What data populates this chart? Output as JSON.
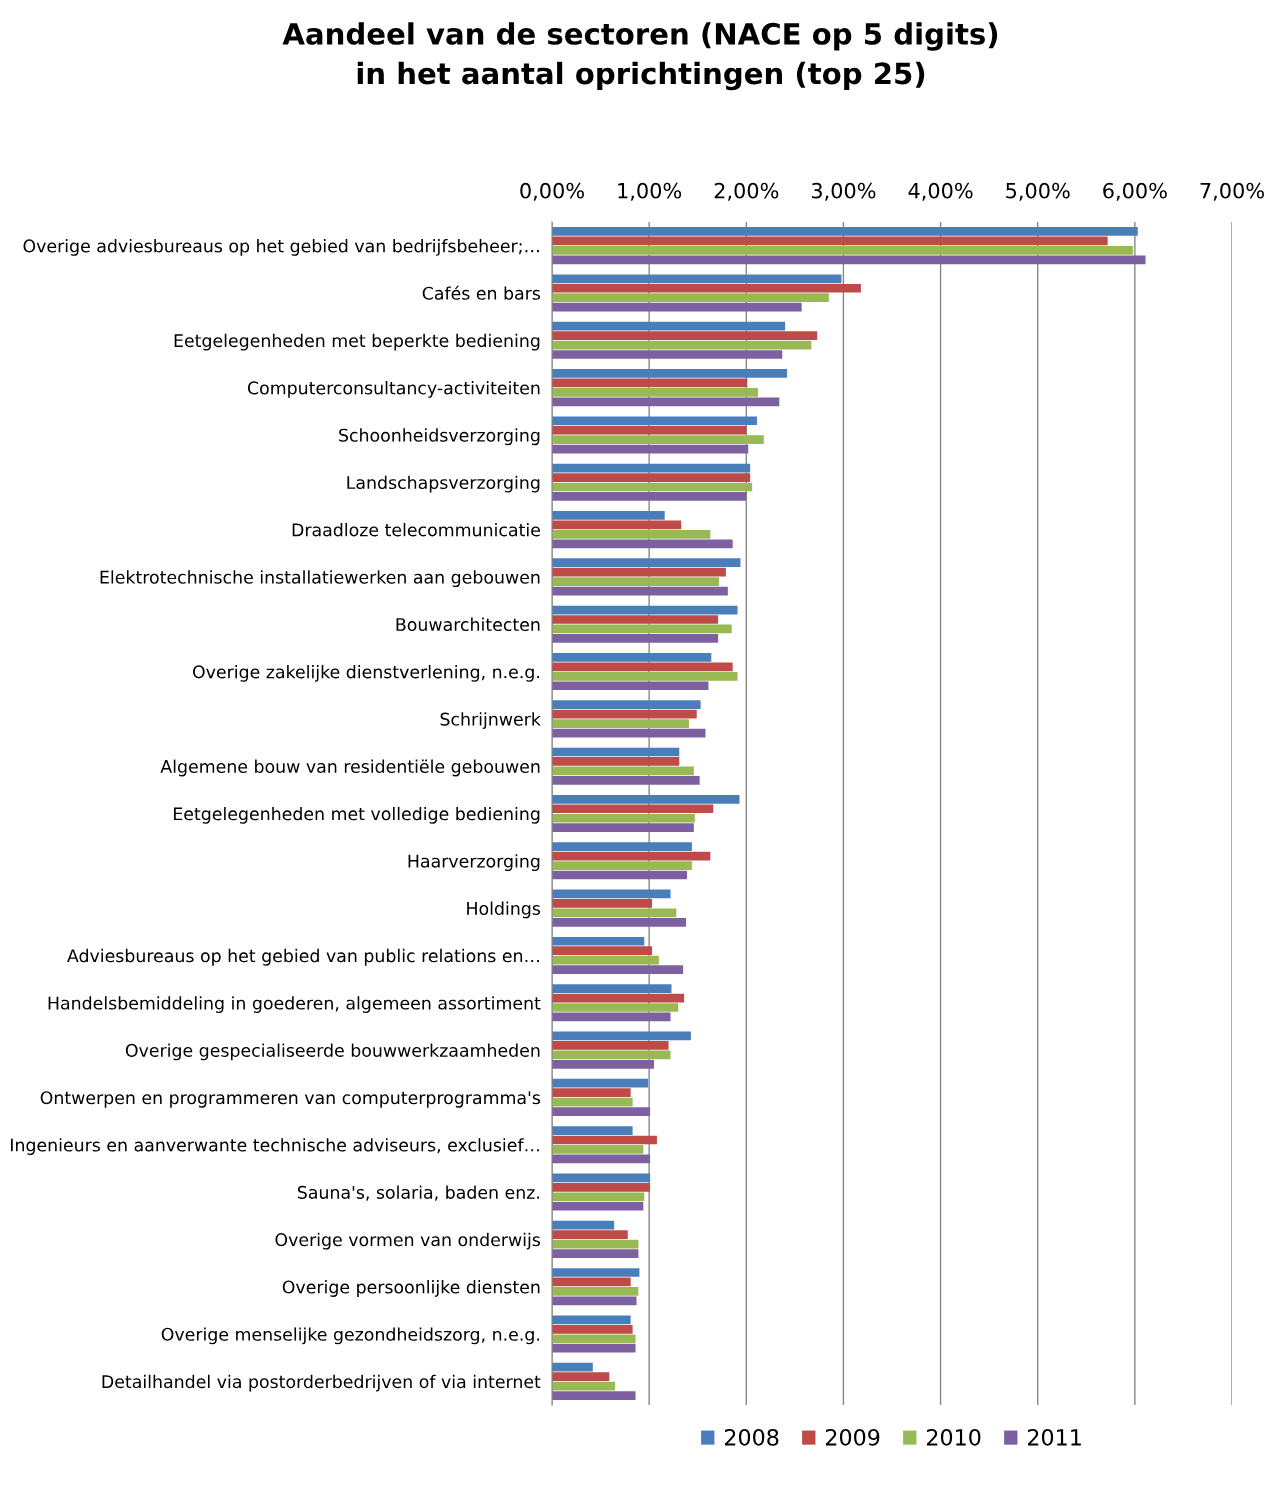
{
  "chart_data": {
    "type": "bar",
    "orientation": "horizontal",
    "title": "Aandeel van de sectoren (NACE op 5 digits)\nin het aantal oprichtingen (top 25)",
    "categories": [
      "Overige adviesbureaus op het gebied van bedrijfsbeheer;…",
      "Cafés en bars",
      "Eetgelegenheden met beperkte bediening",
      "Computerconsultancy-activiteiten",
      "Schoonheidsverzorging",
      "Landschapsverzorging",
      "Draadloze telecommunicatie",
      "Elektrotechnische installatiewerken aan gebouwen",
      "Bouwarchitecten",
      "Overige zakelijke dienstverlening, n.e.g.",
      "Schrijnwerk",
      "Algemene bouw van residentiële gebouwen",
      "Eetgelegenheden met volledige bediening",
      "Haarverzorging",
      "Holdings",
      "Adviesbureaus op het gebied van public relations en…",
      "Handelsbemiddeling in goederen, algemeen assortiment",
      "Overige gespecialiseerde bouwwerkzaamheden",
      "Ontwerpen en programmeren van computerprogramma's",
      "Ingenieurs en aanverwante technische adviseurs, exclusief…",
      "Sauna's, solaria, baden enz.",
      "Overige vormen van onderwijs",
      "Overige persoonlijke diensten",
      "Overige menselijke gezondheidszorg, n.e.g.",
      "Detailhandel via postorderbedrijven of via internet"
    ],
    "series": [
      {
        "name": "2008",
        "color": "#4a7ebb",
        "values": [
          6.03,
          2.98,
          2.4,
          2.42,
          2.11,
          2.04,
          1.16,
          1.94,
          1.91,
          1.64,
          1.53,
          1.31,
          1.93,
          1.44,
          1.22,
          0.95,
          1.23,
          1.43,
          0.99,
          0.83,
          1.01,
          0.64,
          0.9,
          0.81,
          0.42
        ]
      },
      {
        "name": "2009",
        "color": "#be4b48",
        "values": [
          5.72,
          3.18,
          2.73,
          2.01,
          2.0,
          2.04,
          1.33,
          1.79,
          1.71,
          1.86,
          1.49,
          1.31,
          1.66,
          1.63,
          1.03,
          1.03,
          1.36,
          1.2,
          0.81,
          1.08,
          1.01,
          0.78,
          0.81,
          0.83,
          0.59
        ]
      },
      {
        "name": "2010",
        "color": "#98b954",
        "values": [
          5.98,
          2.85,
          2.67,
          2.12,
          2.18,
          2.06,
          1.63,
          1.72,
          1.85,
          1.91,
          1.41,
          1.46,
          1.47,
          1.44,
          1.28,
          1.1,
          1.3,
          1.22,
          0.83,
          0.94,
          0.95,
          0.89,
          0.89,
          0.86,
          0.65
        ]
      },
      {
        "name": "2011",
        "color": "#7d60a0",
        "values": [
          6.11,
          2.57,
          2.37,
          2.34,
          2.02,
          2.0,
          1.86,
          1.81,
          1.71,
          1.61,
          1.58,
          1.52,
          1.46,
          1.39,
          1.38,
          1.35,
          1.22,
          1.05,
          1.01,
          1.01,
          0.94,
          0.89,
          0.87,
          0.86,
          0.86
        ]
      }
    ],
    "xlim": [
      0,
      7
    ],
    "xticks": [
      {
        "value": 0,
        "label": "0,00%"
      },
      {
        "value": 1,
        "label": "1,00%"
      },
      {
        "value": 2,
        "label": "2,00%"
      },
      {
        "value": 3,
        "label": "3,00%"
      },
      {
        "value": 4,
        "label": "4,00%"
      },
      {
        "value": 5,
        "label": "5,00%"
      },
      {
        "value": 6,
        "label": "6,00%"
      },
      {
        "value": 7,
        "label": "7,00%"
      }
    ],
    "grid": "x",
    "legend": "bottom"
  }
}
